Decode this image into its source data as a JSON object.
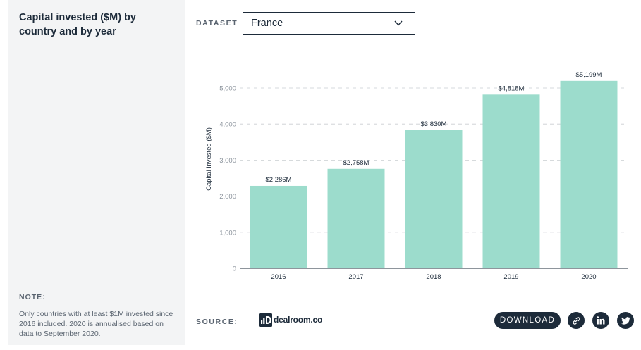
{
  "sidebar": {
    "title": "Capital invested ($M) by country and by year",
    "note_label": "NOTE:",
    "note_text": "Only countries with at least $1M invested since 2016 included. 2020 is annualised based on data to September 2020."
  },
  "dataset": {
    "label": "DATASET",
    "selected": "France"
  },
  "footer": {
    "source_label": "SOURCE:",
    "logo_text": "dealroom.co",
    "download_label": "DOWNLOAD"
  },
  "icons": {
    "dropdown": "chevron-down-icon",
    "link": "link-icon",
    "linkedin": "linkedin-icon",
    "twitter": "twitter-icon"
  },
  "colors": {
    "bar": "#9cdccc",
    "dark": "#1d2b3a"
  },
  "chart_data": {
    "type": "bar",
    "categories": [
      "2016",
      "2017",
      "2018",
      "2019",
      "2020"
    ],
    "values": [
      2286,
      2758,
      3830,
      4818,
      5199
    ],
    "value_labels": [
      "$2,286M",
      "$2,758M",
      "$3,830M",
      "$4,818M",
      "$5,199M"
    ],
    "ylabel": "Capital invested ($M)",
    "xlabel": "",
    "ylim": [
      0,
      5000
    ],
    "yticks": [
      0,
      1000,
      2000,
      3000,
      4000,
      5000
    ],
    "ytick_labels": [
      "0",
      "1,000",
      "2,000",
      "3,000",
      "4,000",
      "5,000"
    ],
    "grid": true,
    "legend": "none"
  }
}
